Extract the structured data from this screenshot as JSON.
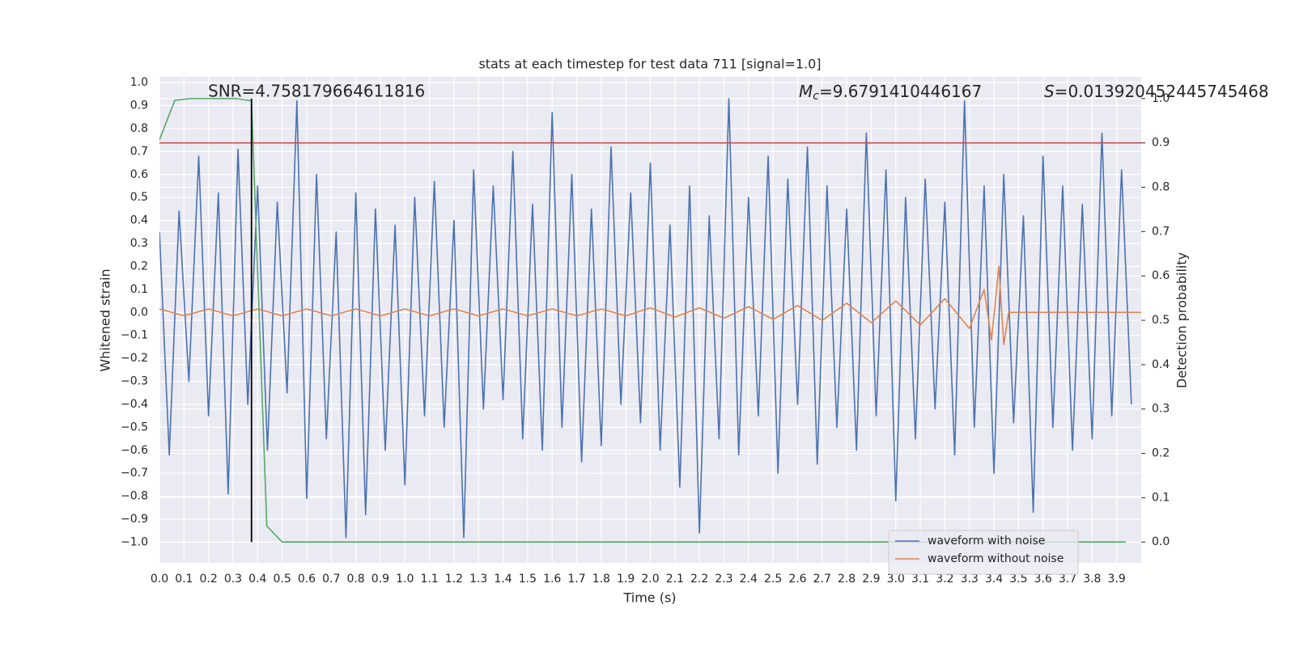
{
  "chart_data": {
    "type": "line",
    "title": "stats at each timestep for test data 711 [signal=1.0]",
    "xlabel": "Time (s)",
    "ylabel": "Whitened strain",
    "y2label": "Detection probability",
    "annotations": [
      {
        "text": "SNR=4.758179664611816"
      },
      {
        "symbol": "M",
        "subscript": "c",
        "text": "=9.6791410446167"
      },
      {
        "symbol": "S",
        "text": "=0.013920452445745468"
      }
    ],
    "xlim": [
      0,
      4.0
    ],
    "ylim": [
      -1.09,
      1.025
    ],
    "y2lim": [
      -0.047,
      1.049
    ],
    "grid": true,
    "legend": "lower right",
    "xticks": [
      {
        "value": 0,
        "label": "0.0"
      },
      {
        "value": 0.1,
        "label": "0.1"
      },
      {
        "value": 0.2,
        "label": "0.2"
      },
      {
        "value": 0.3,
        "label": "0.3"
      },
      {
        "value": 0.4,
        "label": "0.4"
      },
      {
        "value": 0.5,
        "label": "0.5"
      },
      {
        "value": 0.6,
        "label": "0.6"
      },
      {
        "value": 0.7,
        "label": "0.7"
      },
      {
        "value": 0.8,
        "label": "0.8"
      },
      {
        "value": 0.9,
        "label": "0.9"
      },
      {
        "value": 1,
        "label": "1.0"
      },
      {
        "value": 1.1,
        "label": "1.1"
      },
      {
        "value": 1.2,
        "label": "1.2"
      },
      {
        "value": 1.3,
        "label": "1.3"
      },
      {
        "value": 1.4,
        "label": "1.4"
      },
      {
        "value": 1.5,
        "label": "1.5"
      },
      {
        "value": 1.6,
        "label": "1.6"
      },
      {
        "value": 1.7,
        "label": "1.7"
      },
      {
        "value": 1.8,
        "label": "1.8"
      },
      {
        "value": 1.9,
        "label": "1.9"
      },
      {
        "value": 2,
        "label": "2.0"
      },
      {
        "value": 2.1,
        "label": "2.1"
      },
      {
        "value": 2.2,
        "label": "2.2"
      },
      {
        "value": 2.3,
        "label": "2.3"
      },
      {
        "value": 2.4,
        "label": "2.4"
      },
      {
        "value": 2.5,
        "label": "2.5"
      },
      {
        "value": 2.6,
        "label": "2.6"
      },
      {
        "value": 2.7,
        "label": "2.7"
      },
      {
        "value": 2.8,
        "label": "2.8"
      },
      {
        "value": 2.9,
        "label": "2.9"
      },
      {
        "value": 3,
        "label": "3.0"
      },
      {
        "value": 3.1,
        "label": "3.1"
      },
      {
        "value": 3.2,
        "label": "3.2"
      },
      {
        "value": 3.3,
        "label": "3.3"
      },
      {
        "value": 3.4,
        "label": "3.4"
      },
      {
        "value": 3.5,
        "label": "3.5"
      },
      {
        "value": 3.6,
        "label": "3.6"
      },
      {
        "value": 3.7,
        "label": "3.7"
      },
      {
        "value": 3.8,
        "label": "3.8"
      },
      {
        "value": 3.9,
        "label": "3.9"
      }
    ],
    "yticks": [
      {
        "value": -1,
        "label": "−1.0"
      },
      {
        "value": -0.9,
        "label": "−0.9"
      },
      {
        "value": -0.8,
        "label": "−0.8"
      },
      {
        "value": -0.7,
        "label": "−0.7"
      },
      {
        "value": -0.6,
        "label": "−0.6"
      },
      {
        "value": -0.5,
        "label": "−0.5"
      },
      {
        "value": -0.4,
        "label": "−0.4"
      },
      {
        "value": -0.3,
        "label": "−0.3"
      },
      {
        "value": -0.2,
        "label": "−0.2"
      },
      {
        "value": -0.1,
        "label": "−0.1"
      },
      {
        "value": 0,
        "label": "0.0"
      },
      {
        "value": 0.1,
        "label": "0.1"
      },
      {
        "value": 0.2,
        "label": "0.2"
      },
      {
        "value": 0.3,
        "label": "0.3"
      },
      {
        "value": 0.4,
        "label": "0.4"
      },
      {
        "value": 0.5,
        "label": "0.5"
      },
      {
        "value": 0.6,
        "label": "0.6"
      },
      {
        "value": 0.7,
        "label": "0.7"
      },
      {
        "value": 0.8,
        "label": "0.8"
      },
      {
        "value": 0.9,
        "label": "0.9"
      },
      {
        "value": 1,
        "label": "1.0"
      }
    ],
    "y2ticks": [
      {
        "value": 0,
        "label": "0.0"
      },
      {
        "value": 0.1,
        "label": "0.1"
      },
      {
        "value": 0.2,
        "label": "0.2"
      },
      {
        "value": 0.3,
        "label": "0.3"
      },
      {
        "value": 0.4,
        "label": "0.4"
      },
      {
        "value": 0.5,
        "label": "0.5"
      },
      {
        "value": 0.6,
        "label": "0.6"
      },
      {
        "value": 0.7,
        "label": "0.7"
      },
      {
        "value": 0.8,
        "label": "0.8"
      },
      {
        "value": 0.9,
        "label": "0.9"
      },
      {
        "value": 1,
        "label": "1.0"
      }
    ],
    "series": [
      {
        "name": "waveform with noise",
        "color": "#4c72b0",
        "x": [
          0,
          0.04,
          0.08,
          0.12,
          0.16,
          0.2,
          0.24,
          0.28,
          0.32,
          0.36,
          0.4,
          0.44,
          0.48,
          0.52,
          0.56,
          0.6,
          0.64,
          0.68,
          0.72,
          0.76,
          0.8,
          0.84,
          0.88,
          0.92,
          0.96,
          1.0,
          1.04,
          1.08,
          1.12,
          1.16,
          1.2,
          1.24,
          1.28,
          1.32,
          1.36,
          1.4,
          1.44,
          1.48,
          1.52,
          1.56,
          1.6,
          1.64,
          1.68,
          1.72,
          1.76,
          1.8,
          1.84,
          1.88,
          1.92,
          1.96,
          2.0,
          2.04,
          2.08,
          2.12,
          2.16,
          2.2,
          2.24,
          2.28,
          2.32,
          2.36,
          2.4,
          2.44,
          2.48,
          2.52,
          2.56,
          2.6,
          2.64,
          2.68,
          2.72,
          2.76,
          2.8,
          2.84,
          2.88,
          2.92,
          2.96,
          3.0,
          3.04,
          3.08,
          3.12,
          3.16,
          3.2,
          3.24,
          3.28,
          3.32,
          3.36,
          3.4,
          3.44,
          3.48,
          3.52,
          3.56,
          3.6,
          3.64,
          3.68,
          3.72,
          3.76,
          3.8,
          3.84,
          3.88,
          3.92,
          3.96
        ],
        "values": [
          0.35,
          -0.62,
          0.44,
          -0.3,
          0.68,
          -0.45,
          0.52,
          -0.79,
          0.71,
          -0.4,
          0.55,
          -0.6,
          0.48,
          -0.35,
          0.92,
          -0.81,
          0.6,
          -0.55,
          0.35,
          -0.98,
          0.52,
          -0.88,
          0.45,
          -0.6,
          0.38,
          -0.75,
          0.5,
          -0.45,
          0.57,
          -0.5,
          0.4,
          -0.98,
          0.62,
          -0.42,
          0.55,
          -0.38,
          0.7,
          -0.55,
          0.47,
          -0.6,
          0.87,
          -0.5,
          0.6,
          -0.65,
          0.45,
          -0.58,
          0.72,
          -0.4,
          0.52,
          -0.48,
          0.65,
          -0.6,
          0.38,
          -0.76,
          0.55,
          -0.96,
          0.42,
          -0.55,
          0.93,
          -0.62,
          0.5,
          -0.45,
          0.68,
          -0.7,
          0.58,
          -0.4,
          0.72,
          -0.66,
          0.55,
          -0.5,
          0.45,
          -0.6,
          0.78,
          -0.45,
          0.62,
          -0.82,
          0.5,
          -0.55,
          0.58,
          -0.42,
          0.48,
          -0.62,
          0.92,
          -0.5,
          0.55,
          -0.7,
          0.6,
          -0.48,
          0.42,
          -0.87,
          0.68,
          -0.5,
          0.55,
          -0.6,
          0.47,
          -0.55,
          0.78,
          -0.45,
          0.62,
          -0.4
        ]
      },
      {
        "name": "waveform without noise",
        "color": "#dd8452",
        "x": [
          0,
          0.1,
          0.2,
          0.3,
          0.4,
          0.5,
          0.6,
          0.7,
          0.8,
          0.9,
          1.0,
          1.1,
          1.2,
          1.3,
          1.4,
          1.5,
          1.6,
          1.7,
          1.8,
          1.9,
          2.0,
          2.1,
          2.2,
          2.3,
          2.4,
          2.5,
          2.6,
          2.7,
          2.8,
          2.9,
          3.0,
          3.1,
          3.2,
          3.3,
          3.36,
          3.39,
          3.42,
          3.44,
          3.46,
          4.0
        ],
        "values": [
          0.015,
          -0.015,
          0.015,
          -0.015,
          0.015,
          -0.015,
          0.015,
          -0.015,
          0.015,
          -0.015,
          0.015,
          -0.015,
          0.015,
          -0.015,
          0.015,
          -0.015,
          0.015,
          -0.015,
          0.015,
          -0.015,
          0.02,
          -0.02,
          0.02,
          -0.025,
          0.025,
          -0.03,
          0.03,
          -0.035,
          0.04,
          -0.045,
          0.05,
          -0.055,
          0.06,
          -0.07,
          0.1,
          -0.12,
          0.2,
          -0.14,
          0,
          0
        ]
      },
      {
        "color": "#55a868",
        "axis": "y2",
        "x": [
          0,
          0.0625,
          0.125,
          0.1875,
          0.25,
          0.3125,
          0.375,
          0.4375,
          0.5,
          0.5625,
          0.625,
          0.6875,
          0.75,
          0.8125,
          0.875,
          0.9375,
          1.0,
          1.0625,
          1.125,
          1.1875,
          1.25,
          1.3125,
          1.375,
          1.4375,
          1.5,
          1.5625,
          1.625,
          1.6875,
          1.75,
          1.8125,
          1.875,
          1.9375,
          2.0,
          2.0625,
          2.125,
          2.1875,
          2.25,
          2.3125,
          2.375,
          2.4375,
          2.5,
          2.5625,
          2.625,
          2.6875,
          2.75,
          2.8125,
          2.875,
          2.9375,
          3.0,
          3.0625,
          3.125,
          3.1875,
          3.25,
          3.3125,
          3.375,
          3.4375,
          3.5,
          3.5625,
          3.625,
          3.6875,
          3.75,
          3.8125,
          3.875,
          3.9375
        ],
        "values": [
          0.907,
          0.996,
          1.0,
          1.0,
          1.0,
          1.0,
          0.995,
          0.036,
          0,
          0,
          0,
          0,
          0,
          0,
          0,
          0,
          0,
          0,
          0,
          0,
          0,
          0,
          0,
          0,
          0,
          0,
          0,
          0,
          0,
          0,
          0,
          0,
          0,
          0,
          0,
          0,
          0,
          0,
          0,
          0,
          0,
          0,
          0,
          0,
          0,
          0,
          0,
          0,
          0,
          0,
          0,
          0,
          0,
          0,
          0,
          0,
          0,
          0,
          0,
          0,
          0,
          0,
          0,
          0
        ]
      }
    ],
    "threshold": {
      "value": 0.9,
      "axis": "y2",
      "color": "#c44e52"
    },
    "vline": {
      "x": 0.375,
      "range": [
        0,
        1.0
      ],
      "axis": "y2",
      "color": "#000000"
    }
  }
}
